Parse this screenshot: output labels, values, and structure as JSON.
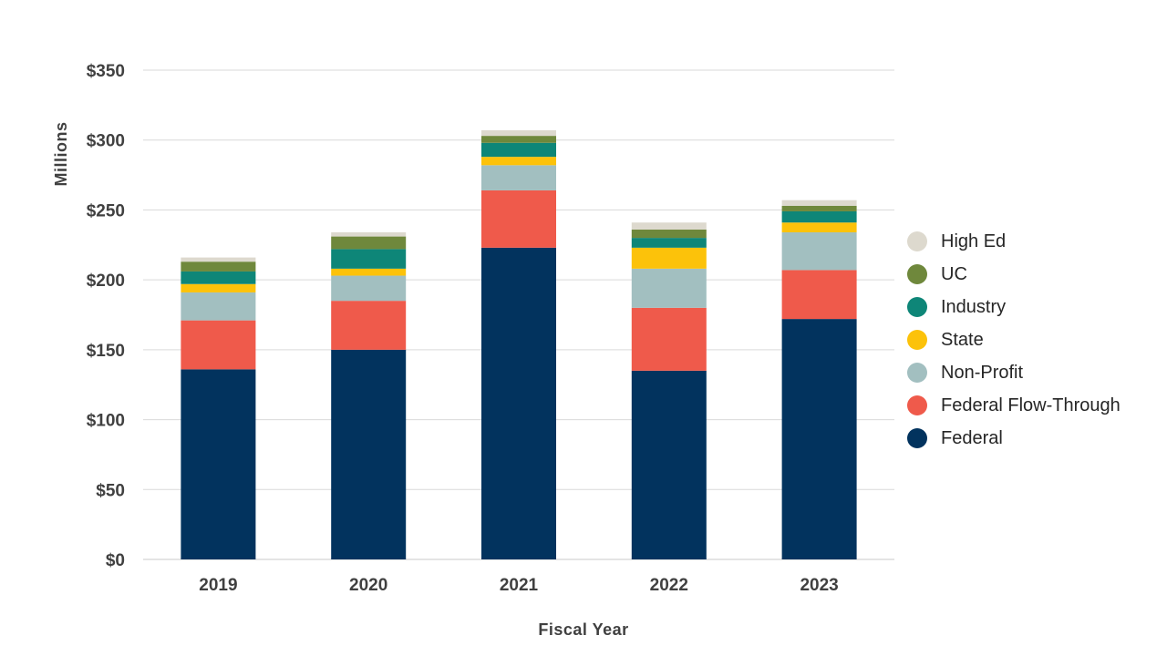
{
  "chart_data": {
    "type": "bar",
    "stacked": true,
    "categories": [
      "2019",
      "2020",
      "2021",
      "2022",
      "2023"
    ],
    "series": [
      {
        "name": "Federal",
        "color": "#02335e",
        "values": [
          136,
          150,
          223,
          135,
          172
        ]
      },
      {
        "name": "Federal Flow-Through",
        "color": "#ef5a4b",
        "values": [
          35,
          35,
          41,
          45,
          35
        ]
      },
      {
        "name": "Non-Profit",
        "color": "#a2bfc0",
        "values": [
          20,
          18,
          18,
          28,
          27
        ]
      },
      {
        "name": "State",
        "color": "#fcc20a",
        "values": [
          6,
          5,
          6,
          15,
          7
        ]
      },
      {
        "name": "Industry",
        "color": "#0e8678",
        "values": [
          9,
          14,
          10,
          7,
          8
        ]
      },
      {
        "name": "UC",
        "color": "#6f883c",
        "values": [
          7,
          9,
          5,
          6,
          4
        ]
      },
      {
        "name": "High Ed",
        "color": "#ddd9ce",
        "values": [
          3,
          3,
          4,
          5,
          4
        ]
      }
    ],
    "y_ticks": [
      "$0",
      "$50",
      "$100",
      "$150",
      "$200",
      "$250",
      "$300",
      "$350"
    ],
    "ylim": [
      0,
      350
    ],
    "ylabel": "Millions",
    "xlabel": "Fiscal Year",
    "grid": true,
    "legend_position": "right",
    "legend_order": [
      "High Ed",
      "UC",
      "Industry",
      "State",
      "Non-Profit",
      "Federal Flow-Through",
      "Federal"
    ]
  }
}
